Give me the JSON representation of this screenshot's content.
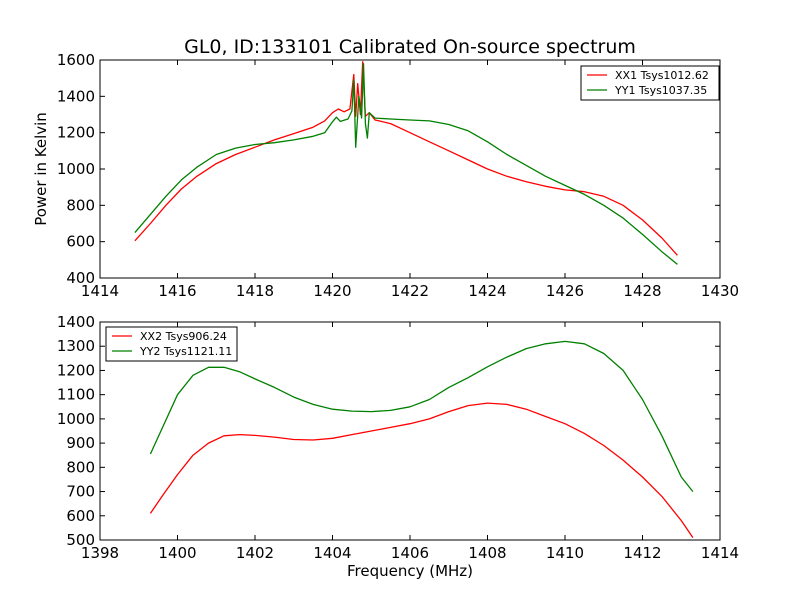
{
  "chart_data": [
    {
      "type": "line",
      "title": "GL0, ID:133101 Calibrated On-source spectrum",
      "xlabel": "",
      "ylabel": "Power in Kelvin",
      "xlim": [
        1414,
        1430
      ],
      "ylim": [
        400,
        1600
      ],
      "xticks": [
        "1414",
        "1416",
        "1418",
        "1420",
        "1422",
        "1424",
        "1426",
        "1428",
        "1430"
      ],
      "yticks": [
        "400",
        "600",
        "800",
        "1000",
        "1200",
        "1400",
        "1600"
      ],
      "legend_position": "top-right",
      "grid": false,
      "series": [
        {
          "name": "XX1 Tsys1012.62",
          "color": "#ff0000",
          "points": [
            [
              1414.9,
              605
            ],
            [
              1415.3,
              700
            ],
            [
              1415.7,
              800
            ],
            [
              1416.1,
              890
            ],
            [
              1416.5,
              960
            ],
            [
              1417.0,
              1030
            ],
            [
              1417.5,
              1080
            ],
            [
              1418.0,
              1120
            ],
            [
              1418.5,
              1160
            ],
            [
              1419.0,
              1195
            ],
            [
              1419.5,
              1230
            ],
            [
              1419.8,
              1265
            ],
            [
              1420.0,
              1310
            ],
            [
              1420.15,
              1330
            ],
            [
              1420.3,
              1315
            ],
            [
              1420.45,
              1330
            ],
            [
              1420.55,
              1520
            ],
            [
              1420.6,
              1290
            ],
            [
              1420.65,
              1470
            ],
            [
              1420.72,
              1300
            ],
            [
              1420.78,
              1590
            ],
            [
              1420.85,
              1290
            ],
            [
              1420.95,
              1310
            ],
            [
              1421.1,
              1270
            ],
            [
              1421.5,
              1250
            ],
            [
              1422.0,
              1200
            ],
            [
              1422.5,
              1150
            ],
            [
              1423.0,
              1100
            ],
            [
              1423.5,
              1050
            ],
            [
              1424.0,
              1000
            ],
            [
              1424.5,
              960
            ],
            [
              1425.0,
              930
            ],
            [
              1425.5,
              905
            ],
            [
              1426.0,
              885
            ],
            [
              1426.5,
              875
            ],
            [
              1427.0,
              850
            ],
            [
              1427.5,
              800
            ],
            [
              1428.0,
              720
            ],
            [
              1428.5,
              620
            ],
            [
              1428.9,
              525
            ]
          ]
        },
        {
          "name": "YY1 Tsys1037.35",
          "color": "#008000",
          "points": [
            [
              1414.9,
              650
            ],
            [
              1415.3,
              750
            ],
            [
              1415.7,
              850
            ],
            [
              1416.1,
              940
            ],
            [
              1416.5,
              1010
            ],
            [
              1417.0,
              1080
            ],
            [
              1417.5,
              1115
            ],
            [
              1418.0,
              1135
            ],
            [
              1418.5,
              1145
            ],
            [
              1419.0,
              1160
            ],
            [
              1419.5,
              1180
            ],
            [
              1419.8,
              1200
            ],
            [
              1420.0,
              1260
            ],
            [
              1420.1,
              1285
            ],
            [
              1420.2,
              1262
            ],
            [
              1420.4,
              1275
            ],
            [
              1420.5,
              1320
            ],
            [
              1420.55,
              1490
            ],
            [
              1420.6,
              1120
            ],
            [
              1420.68,
              1400
            ],
            [
              1420.75,
              1280
            ],
            [
              1420.8,
              1580
            ],
            [
              1420.85,
              1250
            ],
            [
              1420.9,
              1170
            ],
            [
              1420.95,
              1310
            ],
            [
              1421.1,
              1280
            ],
            [
              1421.5,
              1275
            ],
            [
              1422.0,
              1270
            ],
            [
              1422.5,
              1265
            ],
            [
              1423.0,
              1245
            ],
            [
              1423.5,
              1210
            ],
            [
              1424.0,
              1150
            ],
            [
              1424.5,
              1080
            ],
            [
              1425.0,
              1020
            ],
            [
              1425.5,
              960
            ],
            [
              1426.0,
              910
            ],
            [
              1426.5,
              860
            ],
            [
              1427.0,
              800
            ],
            [
              1427.5,
              730
            ],
            [
              1428.0,
              640
            ],
            [
              1428.5,
              545
            ],
            [
              1428.9,
              475
            ]
          ]
        }
      ]
    },
    {
      "type": "line",
      "title": "",
      "xlabel": "Frequency (MHz)",
      "ylabel": "",
      "xlim": [
        1398,
        1414
      ],
      "ylim": [
        500,
        1400
      ],
      "xticks": [
        "1398",
        "1400",
        "1402",
        "1404",
        "1406",
        "1408",
        "1410",
        "1412",
        "1414"
      ],
      "yticks": [
        "500",
        "600",
        "700",
        "800",
        "900",
        "1000",
        "1100",
        "1200",
        "1300",
        "1400"
      ],
      "legend_position": "top-left",
      "grid": false,
      "series": [
        {
          "name": "XX2 Tsys906.24",
          "color": "#ff0000",
          "points": [
            [
              1399.3,
              610
            ],
            [
              1399.6,
              680
            ],
            [
              1400.0,
              770
            ],
            [
              1400.4,
              850
            ],
            [
              1400.8,
              900
            ],
            [
              1401.2,
              930
            ],
            [
              1401.6,
              935
            ],
            [
              1402.0,
              932
            ],
            [
              1402.5,
              925
            ],
            [
              1403.0,
              915
            ],
            [
              1403.5,
              913
            ],
            [
              1404.0,
              920
            ],
            [
              1404.5,
              935
            ],
            [
              1405.0,
              950
            ],
            [
              1405.5,
              965
            ],
            [
              1406.0,
              980
            ],
            [
              1406.5,
              1000
            ],
            [
              1407.0,
              1030
            ],
            [
              1407.5,
              1055
            ],
            [
              1408.0,
              1065
            ],
            [
              1408.5,
              1060
            ],
            [
              1409.0,
              1040
            ],
            [
              1409.5,
              1010
            ],
            [
              1410.0,
              980
            ],
            [
              1410.5,
              940
            ],
            [
              1411.0,
              890
            ],
            [
              1411.5,
              830
            ],
            [
              1412.0,
              760
            ],
            [
              1412.5,
              680
            ],
            [
              1413.0,
              580
            ],
            [
              1413.3,
              510
            ]
          ]
        },
        {
          "name": "YY2 Tsys1121.11",
          "color": "#008000",
          "points": [
            [
              1399.3,
              855
            ],
            [
              1399.6,
              960
            ],
            [
              1400.0,
              1100
            ],
            [
              1400.4,
              1180
            ],
            [
              1400.8,
              1213
            ],
            [
              1401.2,
              1213
            ],
            [
              1401.6,
              1195
            ],
            [
              1402.0,
              1165
            ],
            [
              1402.5,
              1130
            ],
            [
              1403.0,
              1090
            ],
            [
              1403.5,
              1060
            ],
            [
              1404.0,
              1040
            ],
            [
              1404.5,
              1032
            ],
            [
              1405.0,
              1030
            ],
            [
              1405.5,
              1035
            ],
            [
              1406.0,
              1050
            ],
            [
              1406.5,
              1080
            ],
            [
              1407.0,
              1130
            ],
            [
              1407.5,
              1170
            ],
            [
              1408.0,
              1215
            ],
            [
              1408.5,
              1255
            ],
            [
              1409.0,
              1290
            ],
            [
              1409.5,
              1310
            ],
            [
              1410.0,
              1320
            ],
            [
              1410.5,
              1310
            ],
            [
              1411.0,
              1270
            ],
            [
              1411.5,
              1200
            ],
            [
              1412.0,
              1080
            ],
            [
              1412.5,
              930
            ],
            [
              1413.0,
              760
            ],
            [
              1413.3,
              700
            ]
          ]
        }
      ]
    }
  ]
}
